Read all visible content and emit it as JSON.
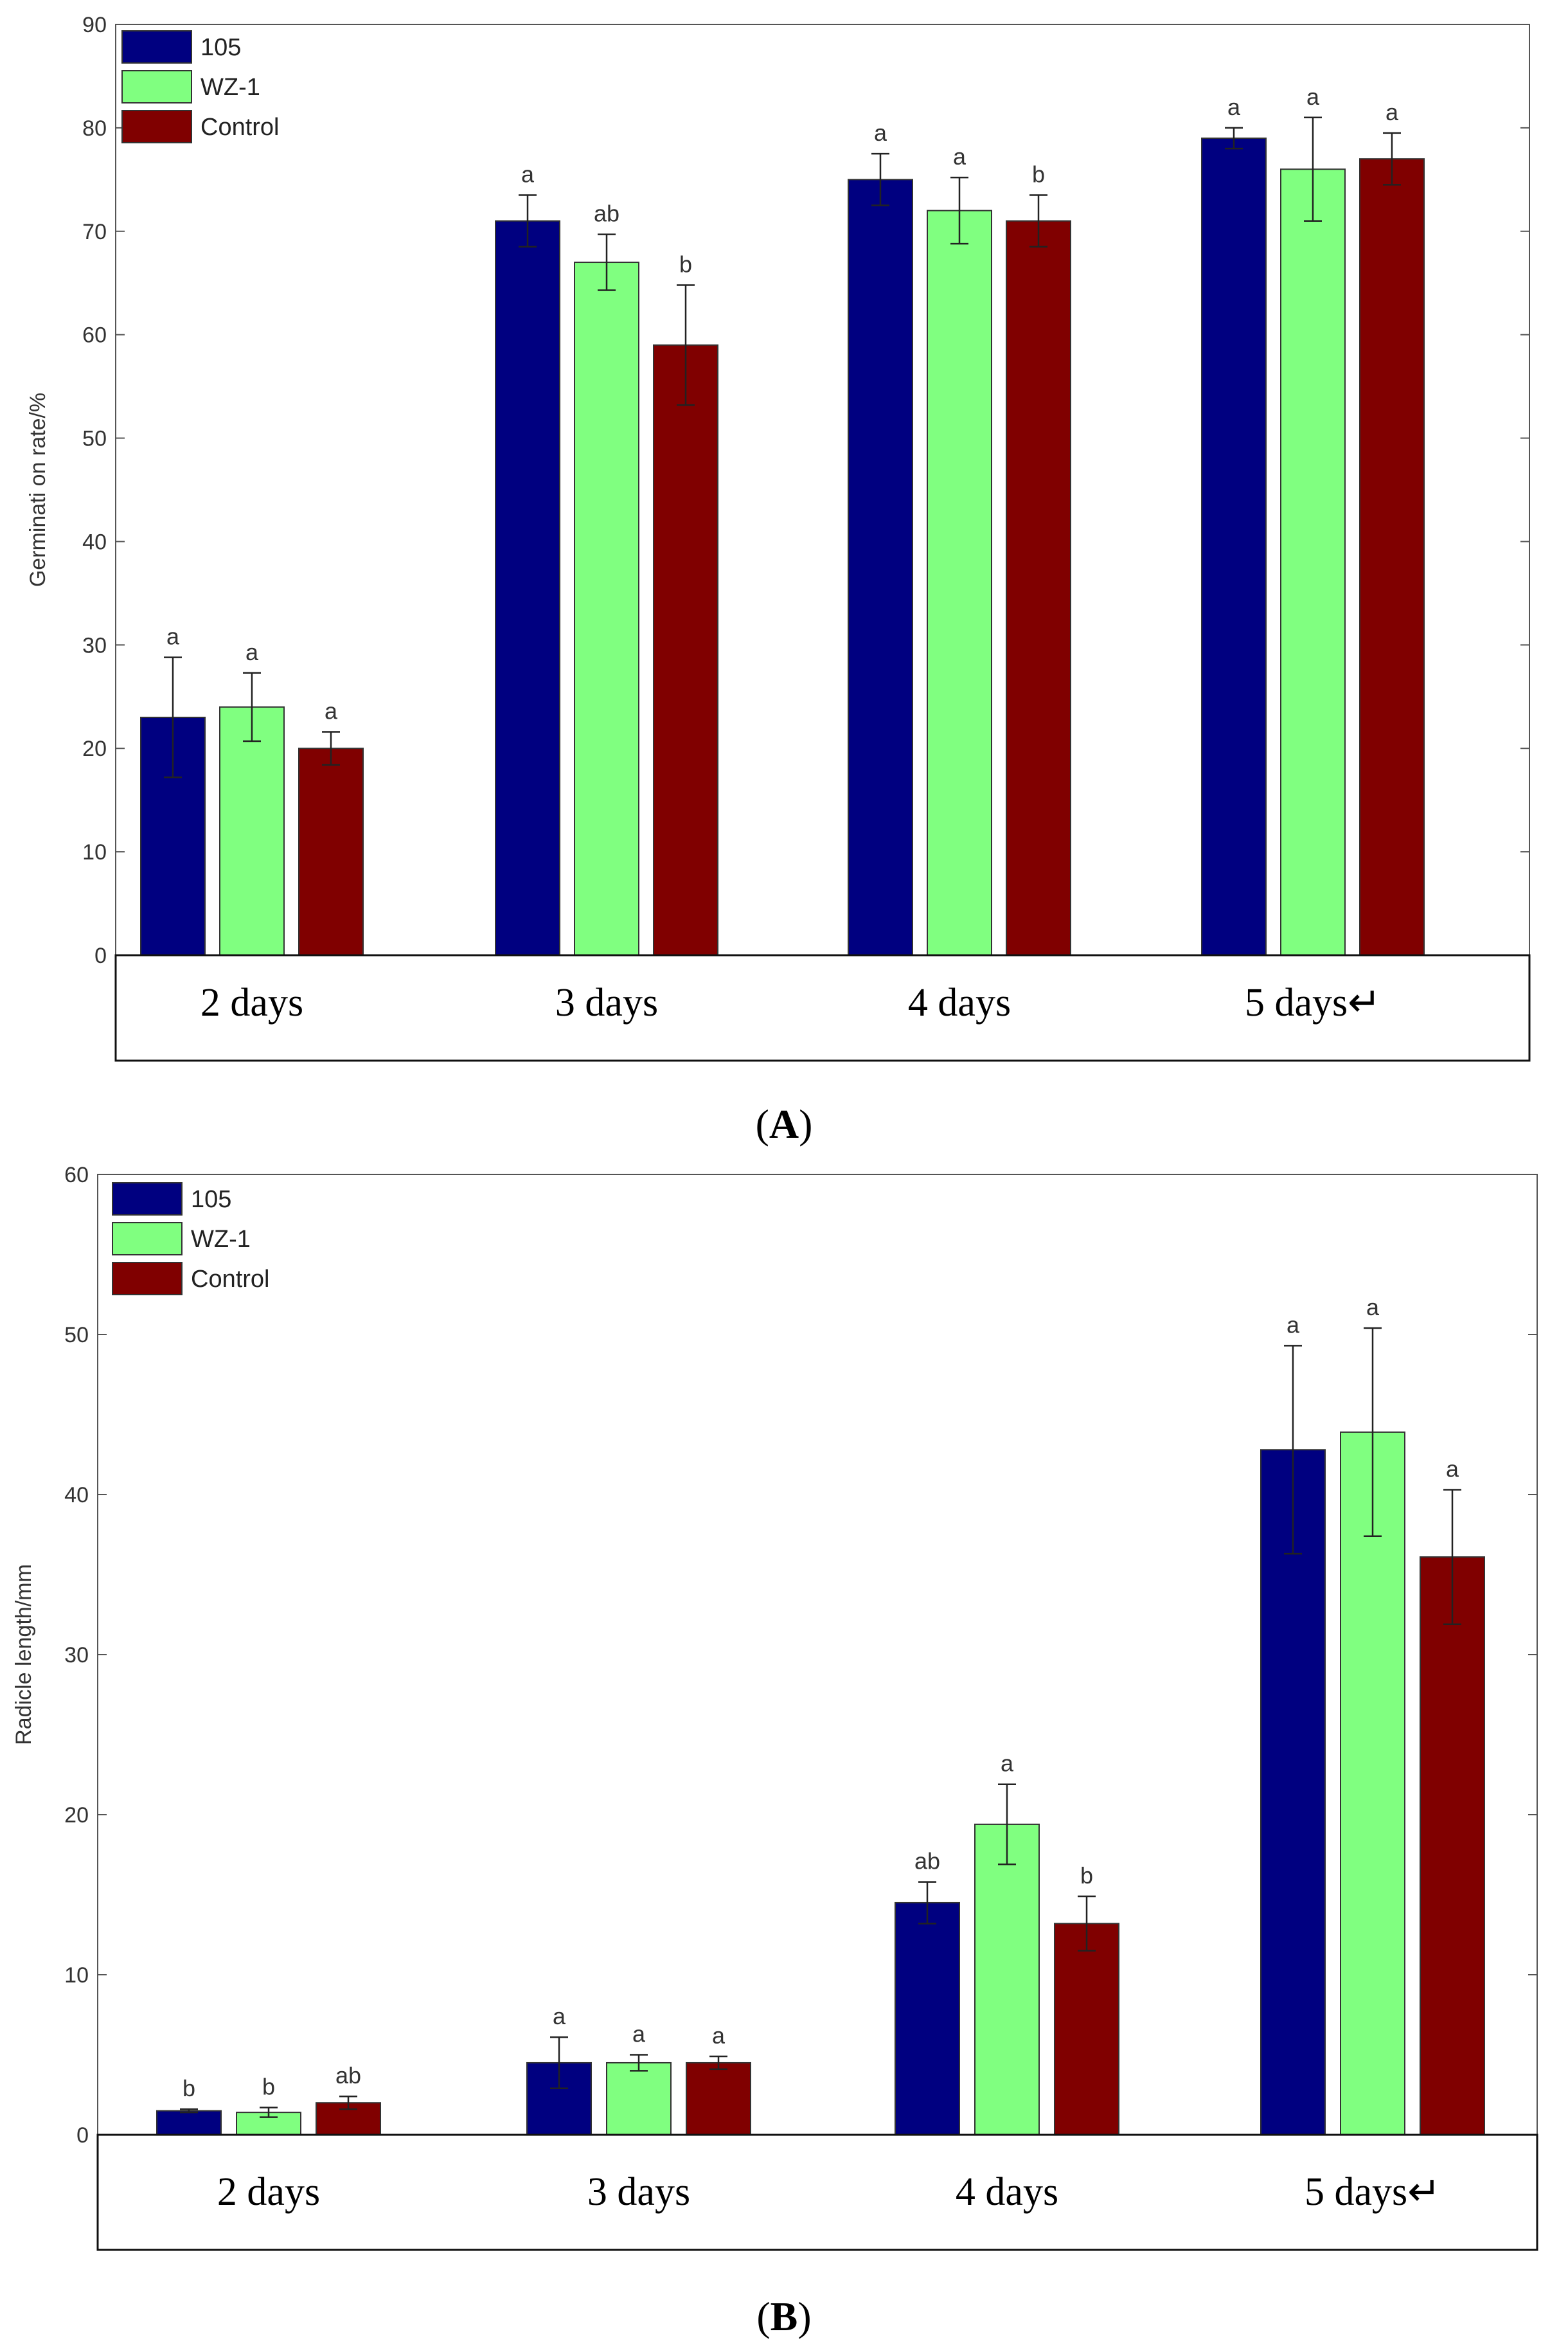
{
  "chart_data": [
    {
      "type": "bar",
      "panel_label": "A",
      "panel_label_text": "(A)",
      "ylabel": "Germinati on rate/%",
      "ylim": [
        0,
        90
      ],
      "yticks": [
        0,
        10,
        20,
        30,
        40,
        50,
        60,
        70,
        80,
        90
      ],
      "categories": [
        "2 days",
        "3 days",
        "4 days",
        "5 days↵"
      ],
      "legend_position": "top-left",
      "series": [
        {
          "name": "105",
          "color": "#000080",
          "values": [
            23,
            71,
            75,
            79
          ],
          "errors": [
            5.8,
            2.5,
            2.5,
            1.0
          ],
          "letters": [
            "a",
            "a",
            "a",
            "a"
          ]
        },
        {
          "name": "WZ-1",
          "color": "#80ff80",
          "values": [
            24,
            67,
            72,
            76
          ],
          "errors": [
            3.3,
            2.7,
            3.2,
            5.0
          ],
          "letters": [
            "a",
            "ab",
            "a",
            "a"
          ]
        },
        {
          "name": "Control",
          "color": "#800000",
          "values": [
            20,
            59,
            71,
            77
          ],
          "errors": [
            1.6,
            5.8,
            2.5,
            2.5
          ],
          "letters": [
            "a",
            "b",
            "b",
            "a"
          ]
        }
      ]
    },
    {
      "type": "bar",
      "panel_label": "B",
      "panel_label_text": "(B)",
      "ylabel": "Radicle length/mm",
      "ylim": [
        0,
        60
      ],
      "yticks": [
        0,
        10,
        20,
        30,
        40,
        50,
        60
      ],
      "categories": [
        "2 days",
        "3 days",
        "4 days",
        "5 days↵"
      ],
      "legend_position": "top-left",
      "series": [
        {
          "name": "105",
          "color": "#000080",
          "values": [
            1.5,
            4.5,
            14.5,
            42.8
          ],
          "errors": [
            0.1,
            1.6,
            1.3,
            6.5
          ],
          "letters": [
            "b",
            "a",
            "ab",
            "a"
          ]
        },
        {
          "name": "WZ-1",
          "color": "#80ff80",
          "values": [
            1.4,
            4.5,
            19.4,
            43.9
          ],
          "errors": [
            0.3,
            0.5,
            2.5,
            6.5
          ],
          "letters": [
            "b",
            "a",
            "a",
            "a"
          ]
        },
        {
          "name": "Control",
          "color": "#800000",
          "values": [
            2.0,
            4.5,
            13.2,
            36.1
          ],
          "errors": [
            0.4,
            0.4,
            1.7,
            4.2
          ],
          "letters": [
            "ab",
            "a",
            "b",
            "a"
          ]
        }
      ]
    }
  ]
}
